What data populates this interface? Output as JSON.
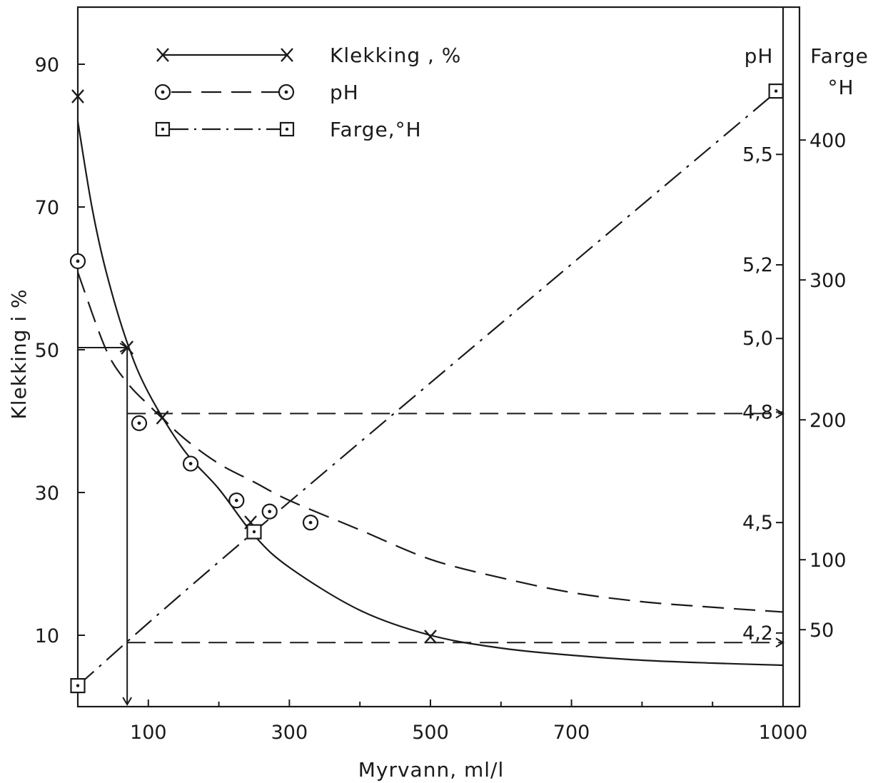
{
  "chart_data": {
    "type": "line",
    "title": "",
    "xlabel": "Myrvann, ml/l",
    "ylabel": "Klekking i %",
    "right_labels": {
      "ph": "pH",
      "farge": "Farge",
      "farge_unit": "°H"
    },
    "xlim": [
      0,
      1000
    ],
    "ylim": [
      0,
      98
    ],
    "ph_range": [
      4.0,
      5.9
    ],
    "farge_range": [
      -5,
      495
    ],
    "x_tick_labels": [
      "100",
      "300",
      "500",
      "700",
      "1000"
    ],
    "x_ticks_major": [
      100,
      300,
      500,
      700,
      1000
    ],
    "x_ticks_minor": [
      200,
      400,
      600,
      800,
      900
    ],
    "y_tick_labels": [
      "10",
      "30",
      "50",
      "70",
      "90"
    ],
    "y_ticks": [
      10,
      30,
      50,
      70,
      90
    ],
    "ph_tick_labels": [
      "4,2",
      "4,5",
      "4,8",
      "5,0",
      "5,2",
      "5,5"
    ],
    "ph_ticks": [
      4.2,
      4.5,
      4.8,
      5.0,
      5.2,
      5.5
    ],
    "farge_tick_labels": [
      "50",
      "100",
      "200",
      "300",
      "400"
    ],
    "farge_ticks": [
      50,
      100,
      200,
      300,
      400
    ],
    "legend_position": "top-left",
    "series": [
      {
        "name": "Klekking , %",
        "marker": "x",
        "line_style": "solid",
        "axis": "left",
        "points": [
          [
            0,
            85.5
          ],
          [
            70,
            50.3
          ],
          [
            120,
            40.5
          ],
          [
            245,
            25.8
          ],
          [
            500,
            9.8
          ]
        ],
        "curve": [
          [
            0,
            82
          ],
          [
            20,
            70
          ],
          [
            40,
            61
          ],
          [
            70,
            51
          ],
          [
            100,
            44
          ],
          [
            150,
            36
          ],
          [
            200,
            30.5
          ],
          [
            250,
            24
          ],
          [
            300,
            19.5
          ],
          [
            400,
            13.5
          ],
          [
            500,
            10
          ],
          [
            600,
            8.2
          ],
          [
            700,
            7.2
          ],
          [
            800,
            6.5
          ],
          [
            900,
            6.1
          ],
          [
            1000,
            5.8
          ]
        ]
      },
      {
        "name": "pH",
        "marker": "circle-dot",
        "line_style": "dashed",
        "axis": "ph",
        "points": [
          [
            0,
            5.21
          ],
          [
            87,
            4.77
          ],
          [
            160,
            4.66
          ],
          [
            225,
            4.56
          ],
          [
            272,
            4.53
          ],
          [
            330,
            4.5
          ]
        ],
        "curve": [
          [
            0,
            5.18
          ],
          [
            40,
            4.97
          ],
          [
            70,
            4.88
          ],
          [
            100,
            4.82
          ],
          [
            150,
            4.73
          ],
          [
            200,
            4.66
          ],
          [
            250,
            4.61
          ],
          [
            300,
            4.56
          ],
          [
            400,
            4.48
          ],
          [
            500,
            4.4
          ],
          [
            600,
            4.35
          ],
          [
            700,
            4.31
          ],
          [
            800,
            4.285
          ],
          [
            900,
            4.27
          ],
          [
            1000,
            4.257
          ]
        ]
      },
      {
        "name": "Farge,°H",
        "marker": "square-dot",
        "line_style": "dashdot",
        "axis": "farge",
        "points": [
          [
            0,
            10
          ],
          [
            250,
            120
          ],
          [
            990,
            435
          ]
        ],
        "curve": [
          [
            0,
            10
          ],
          [
            250,
            120
          ],
          [
            980,
            430
          ]
        ]
      }
    ],
    "reference_lines": [
      {
        "style": "solid-arrow",
        "points": [
          [
            0,
            50.3
          ],
          [
            70,
            50.3
          ]
        ]
      },
      {
        "style": "solid-arrow",
        "points": [
          [
            70,
            50.3
          ],
          [
            70,
            0.3
          ]
        ]
      },
      {
        "style": "dashed-arrow",
        "axis": "ph",
        "points": [
          [
            70,
            4.796
          ],
          [
            1000,
            4.796
          ]
        ]
      },
      {
        "style": "dashed-arrow",
        "axis": "ph",
        "points": [
          [
            70,
            4.174
          ],
          [
            1000,
            4.174
          ]
        ]
      }
    ]
  }
}
